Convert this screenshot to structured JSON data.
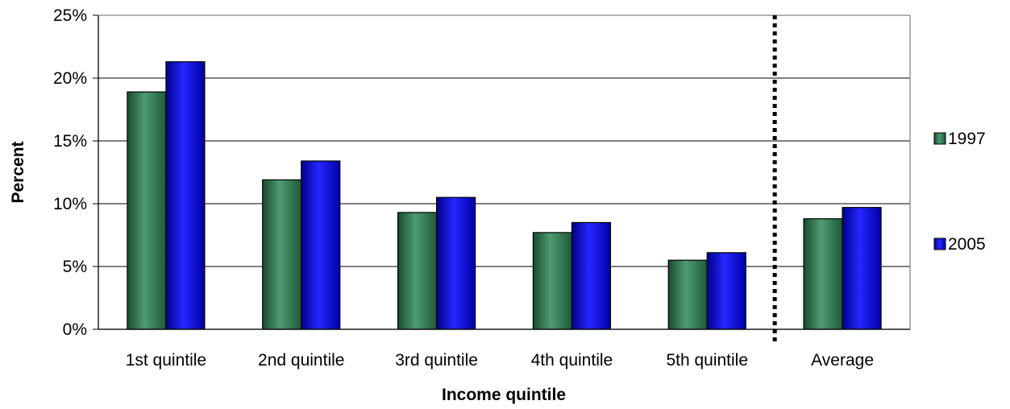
{
  "chart_data": {
    "type": "bar",
    "title": "",
    "xlabel": "Income quintile",
    "ylabel": "Percent",
    "categories": [
      "1st quintile",
      "2nd quintile",
      "3rd quintile",
      "4th quintile",
      "5th quintile",
      "Average"
    ],
    "series": [
      {
        "name": "1997",
        "values": [
          18.9,
          11.9,
          9.3,
          7.7,
          5.5,
          8.8
        ],
        "color": "#2e8b57"
      },
      {
        "name": "2005",
        "values": [
          21.3,
          13.4,
          10.5,
          8.5,
          6.1,
          9.7
        ],
        "color": "#0000ff"
      }
    ],
    "ylim": [
      0,
      25
    ],
    "yticks": [
      0,
      5,
      10,
      15,
      20,
      25
    ],
    "ytick_labels": [
      "0%",
      "5%",
      "10%",
      "15%",
      "20%",
      "25%"
    ],
    "grid": true,
    "legend_position": "right",
    "separator_before_category": "Average",
    "separator_style": "dotted"
  }
}
